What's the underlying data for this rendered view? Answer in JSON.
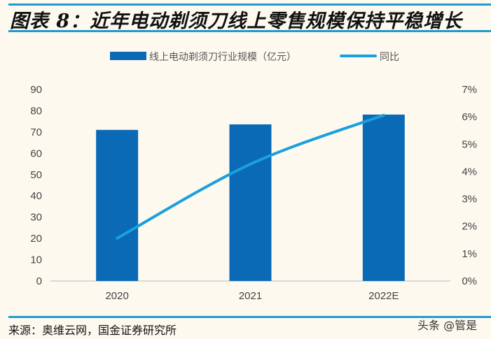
{
  "title": "图表 8：近年电动剃须刀线上零售规模保持平稳增长",
  "source": "来源：奥维云网，国金证券研究所",
  "watermark": "头条 @管是",
  "colors": {
    "bar": "#0a6ab6",
    "line": "#1aa0dc",
    "rule": "#1f9bd1",
    "background": "#fdf9ef"
  },
  "chart_data": {
    "type": "bar+line",
    "categories": [
      "2020",
      "2021",
      "2022E"
    ],
    "series": [
      {
        "name": "线上电动剃须刀行业规模（亿元）",
        "type": "bar",
        "axis": "left",
        "values": [
          71,
          73.6,
          78.2
        ]
      },
      {
        "name": "同比",
        "type": "line",
        "axis": "right",
        "values": [
          1.56,
          4.27,
          6.06
        ]
      }
    ],
    "left_axis": {
      "ylim": [
        0,
        90
      ],
      "ticks": [
        "0",
        "10",
        "20",
        "30",
        "40",
        "50",
        "60",
        "70",
        "80",
        "90"
      ]
    },
    "right_axis": {
      "ylim": [
        0,
        7
      ],
      "unit": "%",
      "ticks": [
        "0%",
        "1%",
        "2%",
        "3%",
        "4%",
        "5%",
        "6%",
        "7%"
      ]
    },
    "legend_placement": "top",
    "grid": false
  }
}
